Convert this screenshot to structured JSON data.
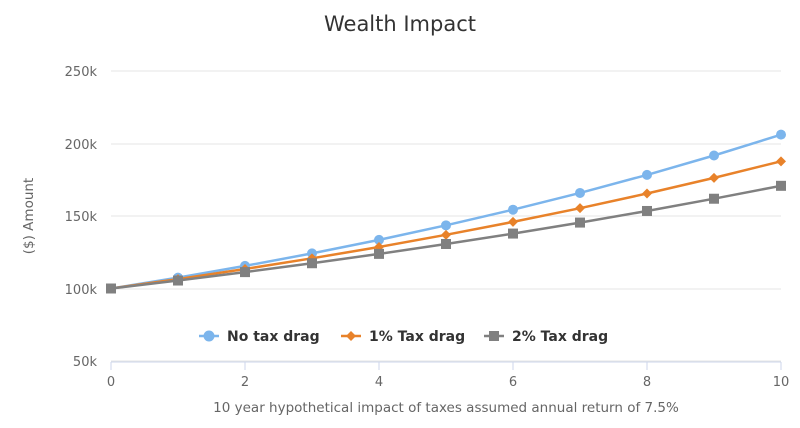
{
  "chart_data": {
    "type": "line",
    "title": "Wealth Impact",
    "xlabel": "10 year hypothetical impact of taxes assumed annual return of 7.5%",
    "ylabel": "($) Amount",
    "x": [
      0,
      1,
      2,
      3,
      4,
      5,
      6,
      7,
      8,
      9,
      10
    ],
    "xlim": [
      0,
      10
    ],
    "ylim": [
      50000,
      250000
    ],
    "x_ticks": [
      "0",
      "2",
      "4",
      "6",
      "8",
      "10"
    ],
    "y_ticks": [
      "50k",
      "100k",
      "150k",
      "200k",
      "250k"
    ],
    "grid": true,
    "legend_position": "bottom-center",
    "series": [
      {
        "name": "No tax drag",
        "color": "#7cb5ec",
        "marker": "circle",
        "values": [
          100000,
          107500,
          115563,
          124230,
          133547,
          143563,
          154330,
          165905,
          178348,
          191724,
          206103
        ]
      },
      {
        "name": "1% Tax drag",
        "color": "#e8822a",
        "marker": "diamond",
        "values": [
          100000,
          106500,
          113423,
          120795,
          128647,
          137009,
          145914,
          155399,
          165500,
          176257,
          187714
        ]
      },
      {
        "name": "2% Tax drag",
        "color": "#808080",
        "marker": "square",
        "values": [
          100000,
          105500,
          111303,
          117424,
          123882,
          130696,
          137884,
          145468,
          153469,
          161909,
          170814
        ]
      }
    ]
  }
}
